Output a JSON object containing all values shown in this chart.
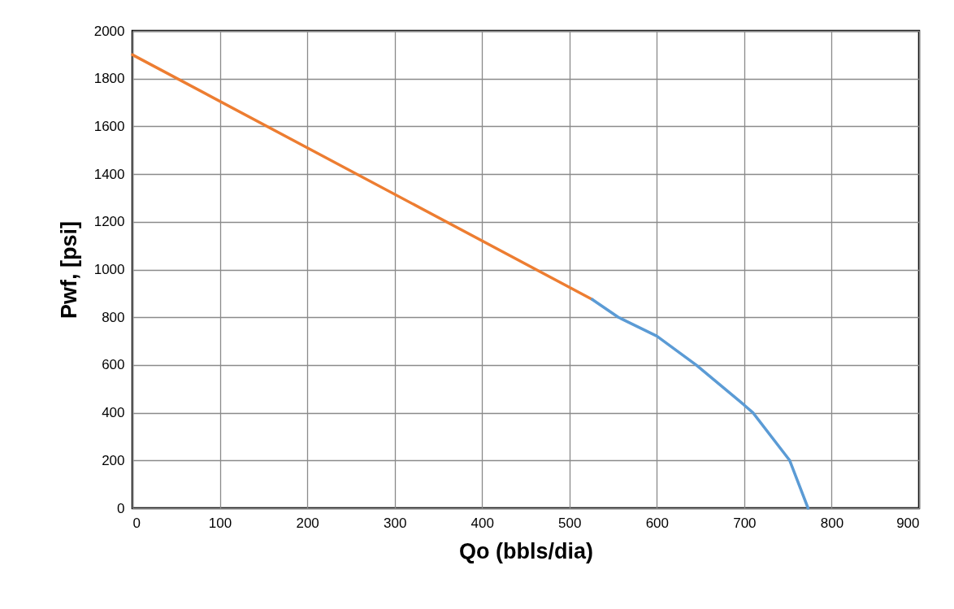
{
  "chart_data": {
    "type": "line",
    "xlabel": "Qo (bbls/dia)",
    "ylabel": "Pwf, [psi]",
    "xlim": [
      0,
      900
    ],
    "xticks": [
      0,
      100,
      200,
      300,
      400,
      500,
      600,
      700,
      800,
      900
    ],
    "ylim": [
      0,
      2000
    ],
    "yticks": [
      0,
      200,
      400,
      600,
      800,
      1000,
      1200,
      1400,
      1600,
      1800,
      2000
    ],
    "grid": true,
    "marker": "none",
    "line_style": "solid",
    "series": [
      {
        "color": "#ed7d31",
        "x": [
          0,
          526
        ],
        "values": [
          1900,
          875
        ]
      },
      {
        "color": "#5b9bd5",
        "x": [
          526,
          556,
          600,
          645,
          700,
          710,
          752,
          773
        ],
        "values": [
          875,
          800,
          721,
          600,
          432,
          400,
          200,
          0
        ]
      }
    ]
  }
}
